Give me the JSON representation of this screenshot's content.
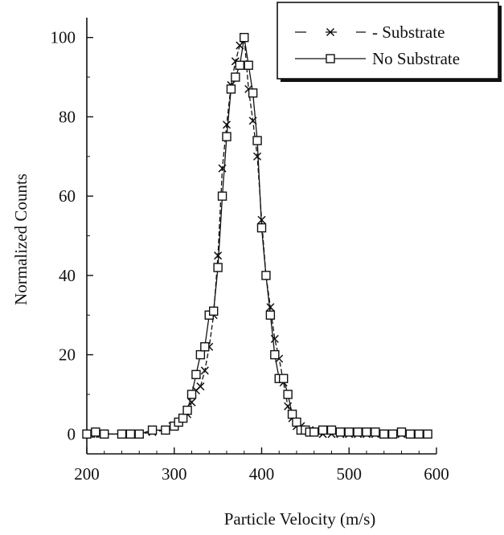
{
  "chart_data": {
    "type": "line",
    "xlabel": "Particle Velocity (m/s)",
    "ylabel": "Normalized Counts",
    "xlim": [
      200,
      600
    ],
    "ylim": [
      -5,
      105
    ],
    "xticks": [
      "200",
      "300",
      "400",
      "500",
      "600"
    ],
    "yticks": [
      "0",
      "20",
      "40",
      "60",
      "80",
      "100"
    ],
    "grid": false,
    "legend_position": "top-right",
    "colors": {
      "ink": "#111111",
      "background": "#ffffff"
    },
    "series": [
      {
        "name": "- Substrate",
        "marker": "x",
        "line": "dashed",
        "x": [
          200,
          205,
          210,
          215,
          220,
          240,
          245,
          250,
          260,
          275,
          290,
          298,
          305,
          310,
          315,
          320,
          325,
          330,
          335,
          340,
          345,
          350,
          355,
          360,
          365,
          370,
          375,
          380,
          385,
          390,
          395,
          400,
          405,
          410,
          415,
          420,
          425,
          430,
          435,
          440,
          445,
          450,
          455,
          460,
          465,
          470,
          480,
          490,
          500,
          510,
          520,
          530,
          540,
          550,
          560,
          570,
          580,
          590
        ],
        "y": [
          0,
          0,
          0,
          0,
          0,
          0,
          0,
          0,
          0,
          0.5,
          1,
          2,
          3,
          4,
          5,
          8,
          11,
          12,
          16,
          22,
          30,
          45,
          67,
          78,
          88,
          94,
          98,
          100,
          87,
          79,
          70,
          54,
          40,
          32,
          24,
          19,
          13,
          7,
          4,
          2,
          2,
          1,
          1,
          0.5,
          0.5,
          0,
          0,
          0,
          0,
          0,
          0,
          0,
          0,
          0,
          0,
          0,
          0,
          0
        ]
      },
      {
        "name": "No Substrate",
        "marker": "square",
        "line": "solid",
        "x": [
          200,
          210,
          220,
          240,
          250,
          260,
          275,
          290,
          300,
          305,
          310,
          315,
          320,
          325,
          330,
          335,
          340,
          345,
          350,
          355,
          360,
          365,
          370,
          375,
          380,
          385,
          390,
          395,
          400,
          405,
          410,
          415,
          420,
          425,
          430,
          435,
          440,
          445,
          450,
          455,
          460,
          470,
          480,
          490,
          500,
          510,
          520,
          530,
          540,
          550,
          560,
          570,
          580,
          590
        ],
        "y": [
          0,
          0.5,
          0,
          0,
          0,
          0,
          1,
          1,
          2,
          3,
          4,
          6,
          10,
          15,
          20,
          22,
          30,
          31,
          42,
          60,
          75,
          87,
          90,
          93,
          100,
          93,
          86,
          74,
          52,
          40,
          30,
          20,
          14,
          14,
          10,
          5,
          3,
          1,
          1,
          0.5,
          0.5,
          1,
          1,
          0.5,
          0.5,
          0.5,
          0.5,
          0.5,
          0,
          0,
          0.5,
          0,
          0,
          0
        ]
      }
    ]
  }
}
